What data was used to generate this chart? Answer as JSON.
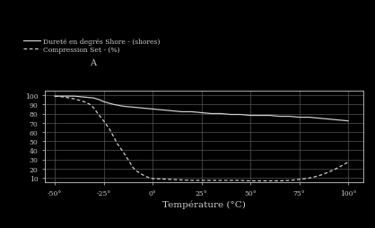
{
  "title_annotation": "A",
  "legend_line1": "Dureté en degrés Shore - (shores)",
  "legend_line2": "Compression Set - (%)",
  "xlabel": "Température (°C)",
  "x_ticks": [
    -50,
    -25,
    0,
    25,
    50,
    75,
    100
  ],
  "y_ticks": [
    10,
    20,
    30,
    40,
    50,
    60,
    70,
    80,
    90,
    100
  ],
  "xlim": [
    -55,
    108
  ],
  "ylim": [
    5,
    105
  ],
  "background_color": "#000000",
  "plot_bg_color": "#000000",
  "line_color": "#cccccc",
  "grid_color": "#555555",
  "text_color": "#cccccc",
  "shore_x": [
    -50,
    -40,
    -35,
    -30,
    -27,
    -25,
    -20,
    -15,
    -10,
    -5,
    0,
    5,
    10,
    15,
    20,
    25,
    30,
    35,
    40,
    45,
    50,
    55,
    60,
    65,
    70,
    75,
    80,
    85,
    90,
    95,
    100
  ],
  "shore_y": [
    99,
    99,
    98,
    97,
    95,
    93,
    90,
    88,
    87,
    86,
    85,
    84,
    83,
    82,
    82,
    81,
    80,
    80,
    79,
    79,
    78,
    78,
    78,
    77,
    77,
    76,
    76,
    75,
    74,
    73,
    72
  ],
  "comp_x": [
    -50,
    -45,
    -40,
    -35,
    -32,
    -30,
    -28,
    -25,
    -22,
    -20,
    -18,
    -15,
    -12,
    -10,
    -8,
    -5,
    -2,
    0,
    5,
    10,
    15,
    20,
    25,
    30,
    35,
    40,
    45,
    50,
    55,
    60,
    65,
    70,
    75,
    80,
    85,
    90,
    95,
    100
  ],
  "comp_y": [
    99,
    98,
    96,
    93,
    90,
    86,
    80,
    72,
    63,
    55,
    47,
    38,
    28,
    21,
    17,
    13,
    10,
    9,
    8.5,
    8,
    7.5,
    7,
    7,
    7,
    7,
    7,
    7,
    6.5,
    6.5,
    6.5,
    6.5,
    7,
    8,
    9.5,
    12,
    16,
    21,
    27
  ]
}
